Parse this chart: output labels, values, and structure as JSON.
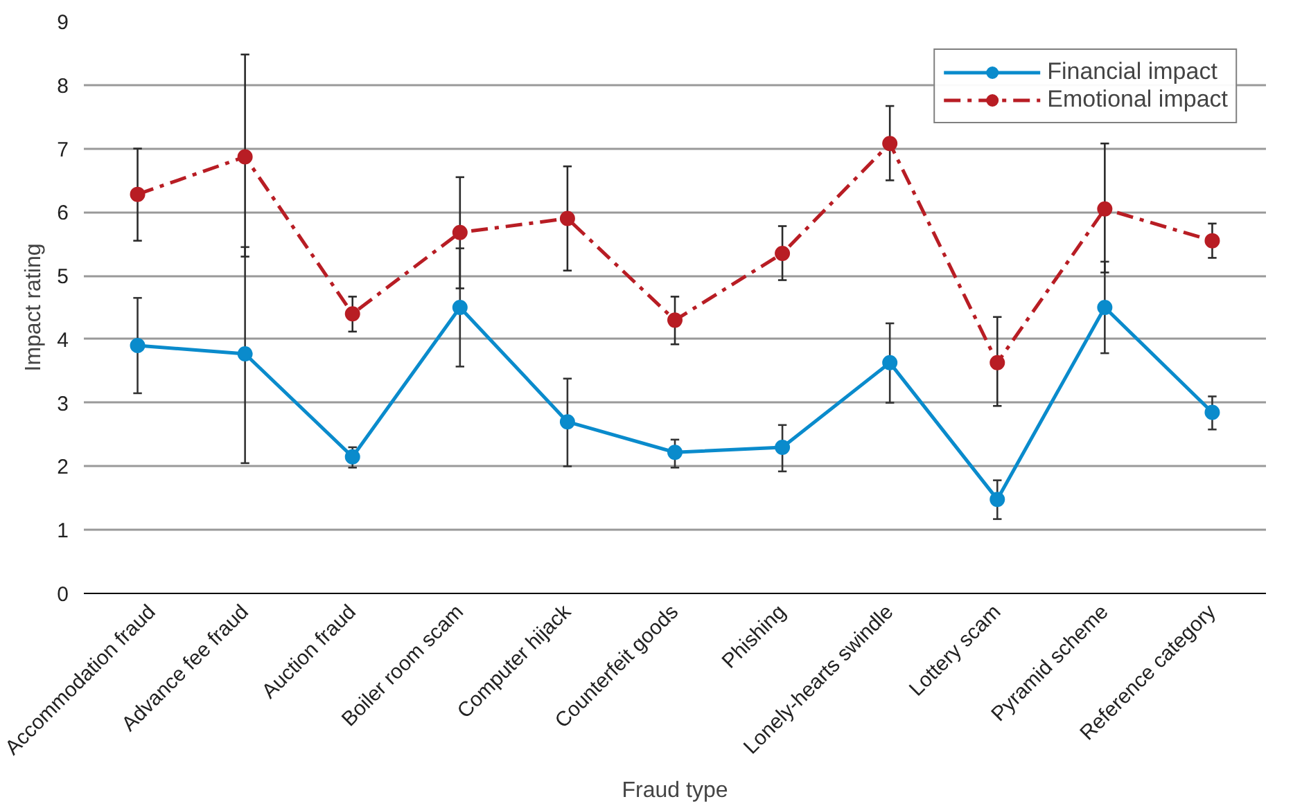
{
  "chart_data": {
    "type": "line",
    "xlabel": "Fraud type",
    "ylabel": "Impact rating",
    "categories": [
      "Accommodation fraud",
      "Advance fee fraud",
      "Auction fraud",
      "Boiler room scam",
      "Computer hijack",
      "Counterfeit goods",
      "Phishing",
      "Lonely-hearts swindle",
      "Lottery scam",
      "Pyramid scheme",
      "Reference category"
    ],
    "series": [
      {
        "name": "Financial impact",
        "color": "#0a8bcc",
        "line_style": "solid",
        "values": [
          3.9,
          3.77,
          2.15,
          4.5,
          2.7,
          2.22,
          2.3,
          3.63,
          1.48,
          4.5,
          2.85
        ],
        "errors": [
          [
            3.15,
            4.65
          ],
          [
            2.05,
            5.45
          ],
          [
            1.98,
            2.3
          ],
          [
            3.57,
            5.43
          ],
          [
            2.0,
            3.38
          ],
          [
            1.98,
            2.42
          ],
          [
            1.92,
            2.65
          ],
          [
            3.0,
            4.25
          ],
          [
            1.17,
            1.78
          ],
          [
            3.78,
            5.22
          ],
          [
            2.58,
            3.1
          ]
        ]
      },
      {
        "name": "Emotional impact",
        "color": "#b81d24",
        "line_style": "dashed",
        "values": [
          6.28,
          6.87,
          4.4,
          5.68,
          5.9,
          4.3,
          5.35,
          7.08,
          3.63,
          6.05,
          5.55
        ],
        "errors": [
          [
            5.55,
            7.0
          ],
          [
            5.3,
            8.48
          ],
          [
            4.12,
            4.67
          ],
          [
            4.8,
            6.55
          ],
          [
            5.08,
            6.72
          ],
          [
            3.92,
            4.67
          ],
          [
            4.93,
            5.78
          ],
          [
            6.5,
            7.67
          ],
          [
            2.95,
            4.35
          ],
          [
            5.05,
            7.08
          ],
          [
            5.28,
            5.82
          ]
        ]
      }
    ],
    "ylim": [
      0,
      9
    ],
    "yticks": [
      0,
      1,
      2,
      3,
      4,
      5,
      6,
      7,
      8,
      9
    ],
    "grid": "y",
    "legend": "top right",
    "marker": "circle"
  }
}
